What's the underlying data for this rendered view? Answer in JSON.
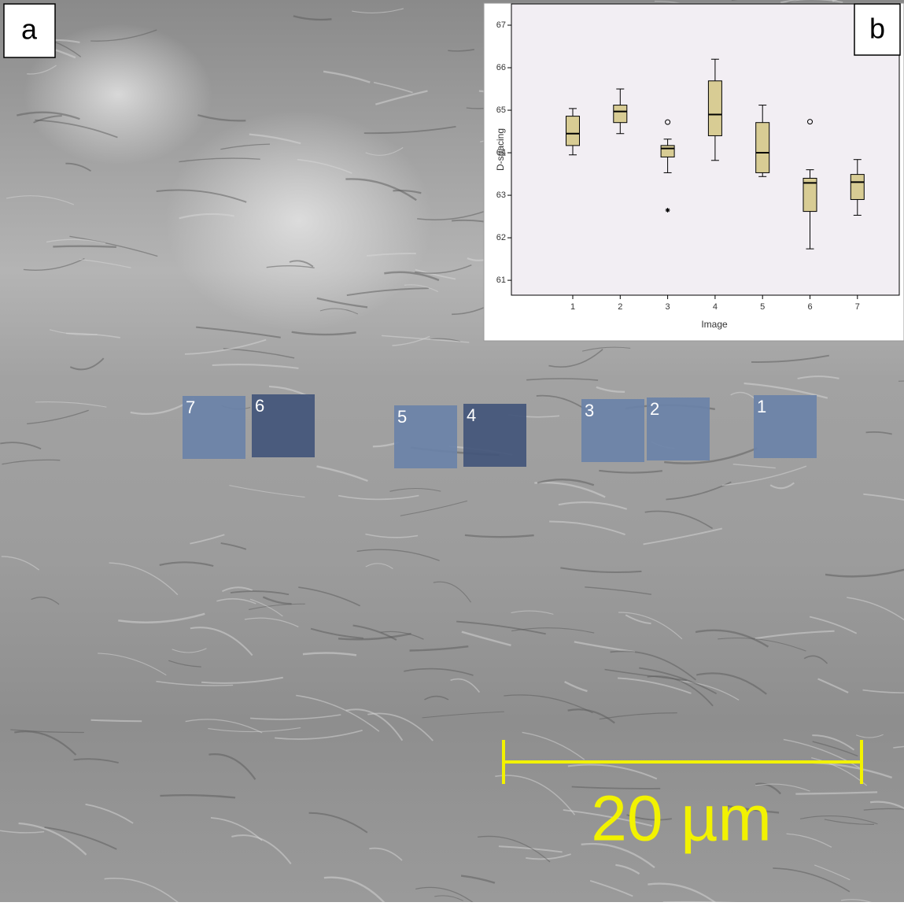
{
  "panel_labels": {
    "a": "a",
    "b": "b"
  },
  "regions": [
    "1",
    "2",
    "3",
    "4",
    "5",
    "6",
    "7"
  ],
  "scale_bar": "20 µm",
  "chart_data": {
    "type": "box",
    "x_label": "Image",
    "y_label": "D-spacing",
    "categories": [
      "1",
      "2",
      "3",
      "4",
      "5",
      "6",
      "7"
    ],
    "low": [
      63.95,
      64.45,
      63.53,
      63.82,
      63.44,
      61.74,
      62.53
    ],
    "q1": [
      64.17,
      64.71,
      63.9,
      64.4,
      63.53,
      62.62,
      62.9
    ],
    "median": [
      64.45,
      64.97,
      64.1,
      64.9,
      64.0,
      63.29,
      63.31
    ],
    "q3": [
      64.86,
      65.12,
      64.17,
      65.69,
      64.71,
      63.4,
      63.49
    ],
    "high": [
      65.04,
      65.5,
      64.32,
      66.2,
      65.12,
      63.6,
      63.84
    ],
    "outliers": [
      [],
      [],
      [
        64.72
      ],
      [],
      [],
      [
        64.73
      ],
      []
    ],
    "extremes": [
      [],
      [],
      [
        62.65
      ],
      [],
      [],
      [],
      []
    ],
    "color": "#d8cc94",
    "ylim": [
      60.65,
      67.5
    ],
    "yticks": [
      61,
      62,
      63,
      64,
      65,
      66,
      67
    ]
  }
}
